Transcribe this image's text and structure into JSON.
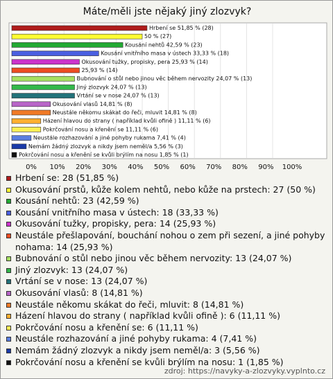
{
  "chart_data": {
    "type": "bar",
    "orientation": "horizontal",
    "title": "Máte/měli jste nějaký jiný zlozvyk?",
    "values": [
      51.85,
      50,
      42.59,
      33.33,
      25.93,
      25.93,
      24.07,
      24.07,
      24.07,
      14.81,
      14.81,
      11.11,
      11.11,
      7.41,
      5.56,
      1.85
    ],
    "value_labels": [
      "Hrbení se 51,85 % (28)",
      "50 % (27)",
      "Kousání nehtů 42,59 % (23)",
      "Kousání vnitřního masa v ústech 33,33 % (18)",
      "Okusování tužky, propisky, pera 25,93 % (14)",
      "25,93 % (14)",
      "Bubnování o stůl nebo jinou věc během nervozity 24,07 % (13)",
      "Jiný zlozvyk 24,07 % (13)",
      "Vrtání se v nose 24,07 % (13)",
      "Okusování vlasů 14,81 % (8)",
      "Neustále někomu skákat do řeči, mluvit 14,81 % (8)",
      "Házení hlavou do strany ( například kvůli ofině ) 11,11 % (6)",
      "Pokrčování nosu a křenění se 11,11 % (6)",
      "Neustále rozhazování a jiné pohyby rukama 7,41 % (4)",
      "Nemám žádný zlozvyk a nikdy jsem neměl/a 5,56 % (3)",
      "Pokrčování nosu a křenění se kvůli brýlím na nosu 1,85 % (1)"
    ],
    "legend_labels": [
      "Hrbení se: 28 (51,85 %)",
      "Okusování prstů, kůže kolem nehtů, nebo kůže na prstech: 27 (50 %)",
      "Kousání nehtů: 23 (42,59 %)",
      "Kousání vnitřního masa v ústech: 18 (33,33 %)",
      "Okusování tužky, propisky, pera: 14 (25,93 %)",
      "Neustále přešlapování, bouchání nohou o zem při sezení, a jiné pohyby nohama: 14 (25,93 %)",
      "Bubnování o stůl nebo jinou věc během nervozity: 13 (24,07 %)",
      "Jiný zlozvyk: 13 (24,07 %)",
      "Vrtání se v nose: 13 (24,07 %)",
      "Okusování vlasů: 8 (14,81 %)",
      "Neustále někomu skákat do řeči, mluvit: 8 (14,81 %)",
      "Házení hlavou do strany ( například kvůli ofině ): 6 (11,11 %)",
      "Pokrčování nosu a křenění se: 6 (11,11 %)",
      "Neustále rozhazování a jiné pohyby rukama: 4 (7,41 %)",
      "Nemám žádný zlozvyk a nikdy jsem neměl/a: 3 (5,56 %)",
      "Pokrčování nosu a křenění se kvůli brýlím na nosu: 1 (1,85 %)"
    ],
    "colors": [
      "#b01c1c",
      "#ffff33",
      "#22aa33",
      "#4a5fe0",
      "#cc33cc",
      "#ee4d22",
      "#a6e060",
      "#33b84a",
      "#23727a",
      "#b865c8",
      "#f07a26",
      "#ffb030",
      "#ffee55",
      "#5a7ee0",
      "#1a3aa8",
      "#111111"
    ],
    "xlim": [
      0,
      100
    ],
    "xticks": [
      {
        "value": 0,
        "label": "0%"
      },
      {
        "value": 10,
        "label": "10%"
      },
      {
        "value": 20,
        "label": "20%"
      },
      {
        "value": 30,
        "label": "30%"
      },
      {
        "value": 40,
        "label": "40%"
      },
      {
        "value": 50,
        "label": "50%"
      },
      {
        "value": 60,
        "label": "60%"
      },
      {
        "value": 70,
        "label": "70%"
      },
      {
        "value": 80,
        "label": "80%"
      },
      {
        "value": 90,
        "label": "90%"
      },
      {
        "value": 100,
        "label": "100%"
      }
    ],
    "grid": true,
    "source": "zdroj: https://navyky-a-zlozvyky.vyplnto.cz"
  }
}
